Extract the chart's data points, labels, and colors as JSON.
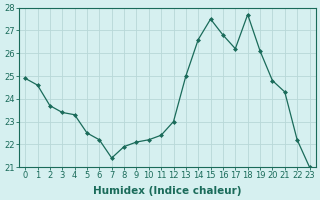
{
  "x": [
    0,
    1,
    2,
    3,
    4,
    5,
    6,
    7,
    8,
    9,
    10,
    11,
    12,
    13,
    14,
    15,
    16,
    17,
    18,
    19,
    20,
    21,
    22,
    23
  ],
  "y": [
    24.9,
    24.6,
    23.7,
    23.4,
    23.3,
    22.5,
    22.2,
    21.4,
    21.9,
    22.1,
    22.2,
    22.4,
    23.0,
    25.0,
    26.6,
    27.5,
    26.8,
    26.2,
    27.7,
    26.1,
    24.8,
    24.3,
    22.2,
    21.0
  ],
  "line_color": "#1a6b5a",
  "marker": "D",
  "marker_size": 2.0,
  "bg_color": "#d6f0f0",
  "grid_color": "#b8d8d8",
  "xlabel": "Humidex (Indice chaleur)",
  "ylim": [
    21,
    28
  ],
  "xlim": [
    -0.5,
    23.5
  ],
  "yticks": [
    21,
    22,
    23,
    24,
    25,
    26,
    27,
    28
  ],
  "xticks": [
    0,
    1,
    2,
    3,
    4,
    5,
    6,
    7,
    8,
    9,
    10,
    11,
    12,
    13,
    14,
    15,
    16,
    17,
    18,
    19,
    20,
    21,
    22,
    23
  ],
  "xlabel_fontsize": 7.5,
  "tick_fontsize": 6,
  "line_color_hex": "#1a6b5a",
  "tick_color": "#1a6b5a",
  "spine_color": "#1a6b5a"
}
